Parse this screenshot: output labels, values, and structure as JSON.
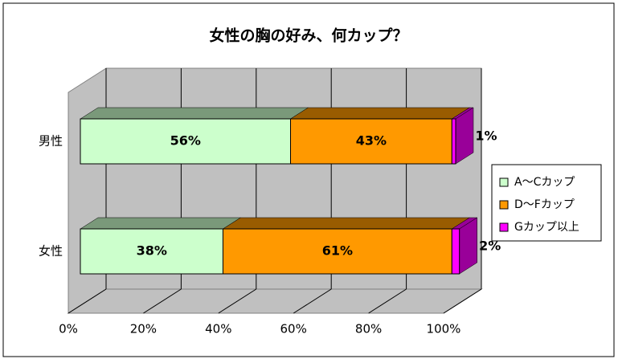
{
  "chart_data": {
    "type": "bar",
    "orientation": "horizontal",
    "stacked": "percent",
    "title": "女性の胸の好み、何カップ？",
    "categories": [
      "男性",
      "女性"
    ],
    "series": [
      {
        "name": "A～Cカップ",
        "color": "#ccffcc",
        "values": [
          56,
          38
        ],
        "value_labels": [
          "56%",
          "38%"
        ]
      },
      {
        "name": "D～Fカップ",
        "color": "#ff9900",
        "values": [
          43,
          61
        ],
        "value_labels": [
          "43%",
          "61%"
        ]
      },
      {
        "name": "Gカップ以上",
        "color": "#ff00ff",
        "values": [
          1,
          2
        ],
        "value_labels": [
          "1%",
          "2%"
        ]
      }
    ],
    "xlim": [
      0,
      100
    ],
    "xticks": [
      {
        "value": 0,
        "label": "0%"
      },
      {
        "value": 20,
        "label": "20%"
      },
      {
        "value": 40,
        "label": "40%"
      },
      {
        "value": 60,
        "label": "60%"
      },
      {
        "value": 80,
        "label": "80%"
      },
      {
        "value": 100,
        "label": "100%"
      }
    ],
    "grid": true,
    "legend": "right"
  }
}
